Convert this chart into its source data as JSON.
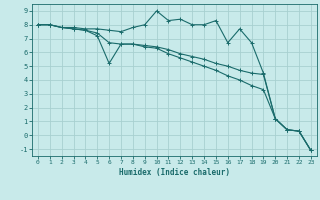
{
  "xlabel": "Humidex (Indice chaleur)",
  "background_color": "#c8eaea",
  "grid_color": "#a8d0d0",
  "line_color": "#1a6b6b",
  "xlim": [
    -0.5,
    23.5
  ],
  "ylim": [
    -1.5,
    9.5
  ],
  "xticks": [
    0,
    1,
    2,
    3,
    4,
    5,
    6,
    7,
    8,
    9,
    10,
    11,
    12,
    13,
    14,
    15,
    16,
    17,
    18,
    19,
    20,
    21,
    22,
    23
  ],
  "yticks": [
    -1,
    0,
    1,
    2,
    3,
    4,
    5,
    6,
    7,
    8,
    9
  ],
  "line1_x": [
    0,
    1,
    2,
    3,
    4,
    5,
    6,
    7,
    8,
    9,
    10,
    11,
    12,
    13,
    14,
    15,
    16,
    17,
    18,
    19,
    20,
    21,
    22,
    23
  ],
  "line1_y": [
    8,
    8,
    7.8,
    7.8,
    7.7,
    7.7,
    7.6,
    7.5,
    7.8,
    8.0,
    9.0,
    8.3,
    8.4,
    8.0,
    8.0,
    8.3,
    6.7,
    7.7,
    6.7,
    4.5,
    1.2,
    0.4,
    0.3,
    -1.1
  ],
  "line2_x": [
    0,
    1,
    2,
    3,
    4,
    5,
    6,
    7,
    8,
    9,
    10,
    11,
    12,
    13,
    14,
    15,
    16,
    17,
    18,
    19,
    20,
    21,
    22,
    23
  ],
  "line2_y": [
    8,
    8,
    7.8,
    7.7,
    7.6,
    7.4,
    6.7,
    6.6,
    6.6,
    6.5,
    6.4,
    6.2,
    5.9,
    5.7,
    5.5,
    5.2,
    5.0,
    4.7,
    4.5,
    4.4,
    1.2,
    0.4,
    0.3,
    -1.1
  ],
  "line3_x": [
    0,
    1,
    2,
    3,
    4,
    5,
    6,
    7,
    8,
    9,
    10,
    11,
    12,
    13,
    14,
    15,
    16,
    17,
    18,
    19,
    20,
    21,
    22,
    23
  ],
  "line3_y": [
    8,
    8,
    7.8,
    7.7,
    7.6,
    7.2,
    5.2,
    6.6,
    6.6,
    6.4,
    6.3,
    5.9,
    5.6,
    5.3,
    5.0,
    4.7,
    4.3,
    4.0,
    3.6,
    3.3,
    1.2,
    0.4,
    0.3,
    -1.1
  ]
}
